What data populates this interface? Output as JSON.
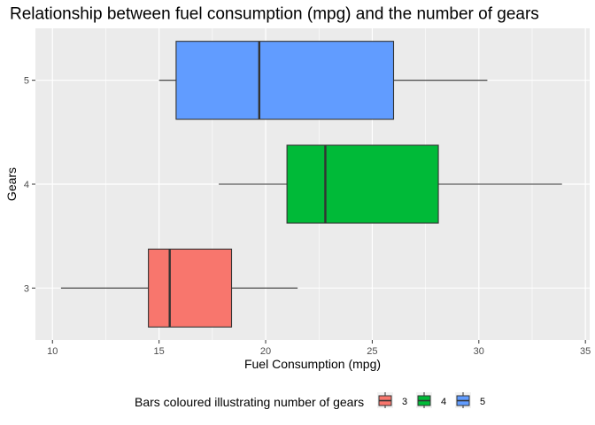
{
  "chart_data": {
    "type": "boxplot",
    "orientation": "horizontal",
    "title": "Relationship between fuel consumption (mpg) and the number of gears",
    "xlabel": "Fuel Consumption (mpg)",
    "ylabel": "Gears",
    "xlim": [
      9.2,
      35.2
    ],
    "x_ticks": [
      "10",
      "15",
      "20",
      "25",
      "30",
      "35"
    ],
    "categories": [
      "3",
      "4",
      "5"
    ],
    "boxes": [
      {
        "category": "3",
        "min": 10.4,
        "q1": 14.5,
        "median": 15.5,
        "q3": 18.4,
        "max": 21.5,
        "color": "#F8766D"
      },
      {
        "category": "4",
        "min": 17.8,
        "q1": 21.0,
        "median": 22.8,
        "q3": 28.1,
        "max": 33.9,
        "color": "#00BA38"
      },
      {
        "category": "5",
        "min": 15.0,
        "q1": 15.8,
        "median": 19.7,
        "q3": 26.0,
        "max": 30.4,
        "color": "#619CFF"
      }
    ],
    "grid": true,
    "panel_background": "#EBEBEB",
    "legend": {
      "title": "Bars coloured illustrating number of gears",
      "position": "bottom",
      "items": [
        {
          "label": "3",
          "color": "#F8766D"
        },
        {
          "label": "4",
          "color": "#00BA38"
        },
        {
          "label": "5",
          "color": "#619CFF"
        }
      ]
    }
  }
}
